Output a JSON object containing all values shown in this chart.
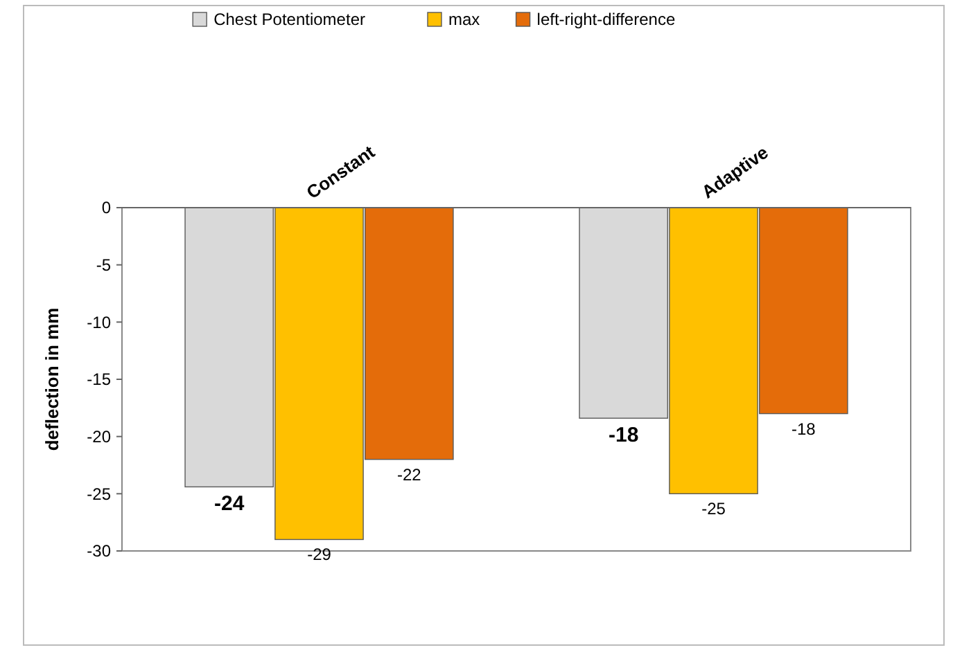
{
  "chart_data": {
    "type": "bar",
    "ylabel": "deflection in mm",
    "categories": [
      "Constant",
      "Adaptive"
    ],
    "series": [
      {
        "name": "Chest Potentiometer",
        "color": "#d9d9d9",
        "values": [
          -24.4,
          -18.4
        ],
        "value_labels": [
          "-24",
          "-18"
        ]
      },
      {
        "name": "max",
        "color": "#ffc000",
        "values": [
          -29,
          -25
        ],
        "value_labels": [
          "-29",
          "-25"
        ]
      },
      {
        "name": "left-right-difference",
        "color": "#e46c0a",
        "values": [
          -22,
          -18
        ],
        "value_labels": [
          "-22",
          "-18"
        ]
      }
    ],
    "ylim": [
      -30,
      0
    ],
    "yticks": [
      0,
      -5,
      -10,
      -15,
      -20,
      -25,
      -30
    ],
    "grid": false,
    "legend": "top"
  }
}
